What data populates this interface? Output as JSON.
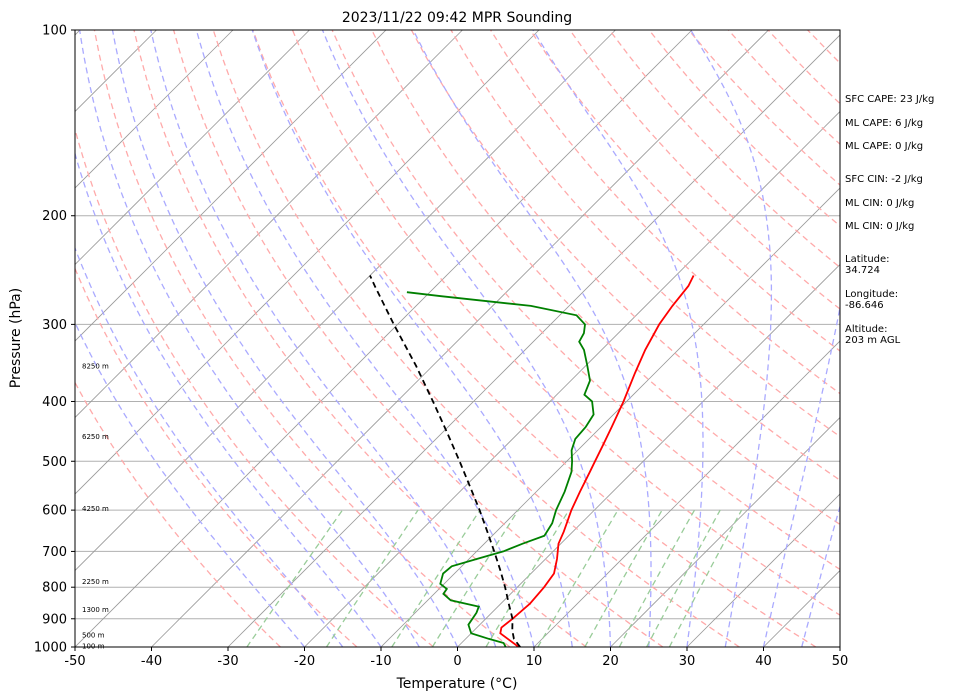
{
  "chart_data": {
    "type": "line",
    "title": "2023/11/22 09:42 MPR Sounding",
    "xlabel": "Temperature (°C)",
    "ylabel": "Pressure (hPa)",
    "xlim": [
      -50,
      50
    ],
    "ylim": [
      1000,
      100
    ],
    "y_scale": "log",
    "x_ticks": [
      "-50",
      "-40",
      "-30",
      "-20",
      "-10",
      "0",
      "10",
      "20",
      "30",
      "40",
      "50"
    ],
    "y_ticks": [
      "1000",
      "900",
      "800",
      "700",
      "600",
      "500",
      "400",
      "300",
      "200",
      "100"
    ],
    "y_tick_values": [
      1000,
      900,
      800,
      700,
      600,
      500,
      400,
      300,
      200,
      100
    ],
    "grid": true,
    "colors": {
      "temperature": "#ff0000",
      "dewpoint": "#008000",
      "parcel": "#000000",
      "dry_adiabat": "#ffaaaa",
      "moist_adiabat": "#aaaaff",
      "mixing_ratio": "#99cc99",
      "isotherm": "#999999"
    },
    "series": [
      {
        "key": "temperature",
        "points": [
          [
            1000,
            8.0
          ],
          [
            970,
            5.5
          ],
          [
            950,
            3.8
          ],
          [
            930,
            3.2
          ],
          [
            900,
            3.5
          ],
          [
            850,
            3.8
          ],
          [
            800,
            3.5
          ],
          [
            760,
            3.0
          ],
          [
            720,
            1.5
          ],
          [
            680,
            -0.3
          ],
          [
            650,
            -1.2
          ],
          [
            600,
            -3.0
          ],
          [
            560,
            -4.3
          ],
          [
            520,
            -5.6
          ],
          [
            500,
            -6.3
          ],
          [
            470,
            -7.4
          ],
          [
            440,
            -8.6
          ],
          [
            400,
            -10.4
          ],
          [
            360,
            -12.6
          ],
          [
            330,
            -14.3
          ],
          [
            300,
            -15.8
          ],
          [
            280,
            -16.5
          ],
          [
            260,
            -17.0
          ],
          [
            250,
            -17.7
          ]
        ]
      },
      {
        "key": "dewpoint",
        "points": [
          [
            1000,
            6.3
          ],
          [
            985,
            5.5
          ],
          [
            970,
            3.0
          ],
          [
            950,
            0.0
          ],
          [
            920,
            -1.5
          ],
          [
            880,
            -2.0
          ],
          [
            860,
            -2.5
          ],
          [
            840,
            -7.0
          ],
          [
            820,
            -8.8
          ],
          [
            805,
            -9.0
          ],
          [
            790,
            -10.5
          ],
          [
            760,
            -11.5
          ],
          [
            740,
            -11.3
          ],
          [
            720,
            -9.0
          ],
          [
            700,
            -6.5
          ],
          [
            680,
            -5.0
          ],
          [
            660,
            -3.2
          ],
          [
            630,
            -3.8
          ],
          [
            600,
            -5.0
          ],
          [
            560,
            -6.3
          ],
          [
            520,
            -8.0
          ],
          [
            500,
            -9.3
          ],
          [
            480,
            -10.8
          ],
          [
            460,
            -11.8
          ],
          [
            440,
            -12.0
          ],
          [
            420,
            -12.6
          ],
          [
            400,
            -14.5
          ],
          [
            390,
            -16.4
          ],
          [
            370,
            -17.5
          ],
          [
            350,
            -19.8
          ],
          [
            330,
            -22.3
          ],
          [
            320,
            -24.0
          ],
          [
            310,
            -24.5
          ],
          [
            300,
            -25.5
          ],
          [
            290,
            -27.8
          ],
          [
            280,
            -35.0
          ],
          [
            270,
            -48.0
          ],
          [
            266,
            -53.0
          ]
        ]
      },
      {
        "key": "parcel",
        "dashed": true,
        "points": [
          [
            1000,
            8.2
          ],
          [
            970,
            6.3
          ],
          [
            940,
            5.0
          ],
          [
            900,
            3.5
          ],
          [
            850,
            1.0
          ],
          [
            800,
            -1.6
          ],
          [
            750,
            -4.5
          ],
          [
            700,
            -7.7
          ],
          [
            650,
            -11.2
          ],
          [
            600,
            -15.0
          ],
          [
            550,
            -19.3
          ],
          [
            500,
            -24.0
          ],
          [
            450,
            -29.3
          ],
          [
            400,
            -35.3
          ],
          [
            350,
            -42.2
          ],
          [
            300,
            -50.5
          ],
          [
            260,
            -58.0
          ],
          [
            250,
            -60.0
          ]
        ]
      }
    ],
    "annotations": {
      "indices": [
        "SFC CAPE: 23 J/kg",
        "ML CAPE: 6 J/kg",
        "ML CAPE: 0 J/kg",
        "SFC CIN: -2 J/kg",
        "ML CIN: 0 J/kg",
        "ML CIN: 0 J/kg"
      ],
      "location": [
        [
          "Latitude:",
          "34.724"
        ],
        [
          "Longitude:",
          "-86.646"
        ],
        [
          "Altitude:",
          "203 m AGL"
        ]
      ],
      "heights": [
        {
          "label": "8250 m",
          "p": 350
        },
        {
          "label": "6250 m",
          "p": 455
        },
        {
          "label": "4250 m",
          "p": 595
        },
        {
          "label": "2250 m",
          "p": 782
        },
        {
          "label": "1300 m",
          "p": 868
        },
        {
          "label": "500 m",
          "p": 955
        },
        {
          "label": "100 m",
          "p": 995
        }
      ]
    }
  }
}
